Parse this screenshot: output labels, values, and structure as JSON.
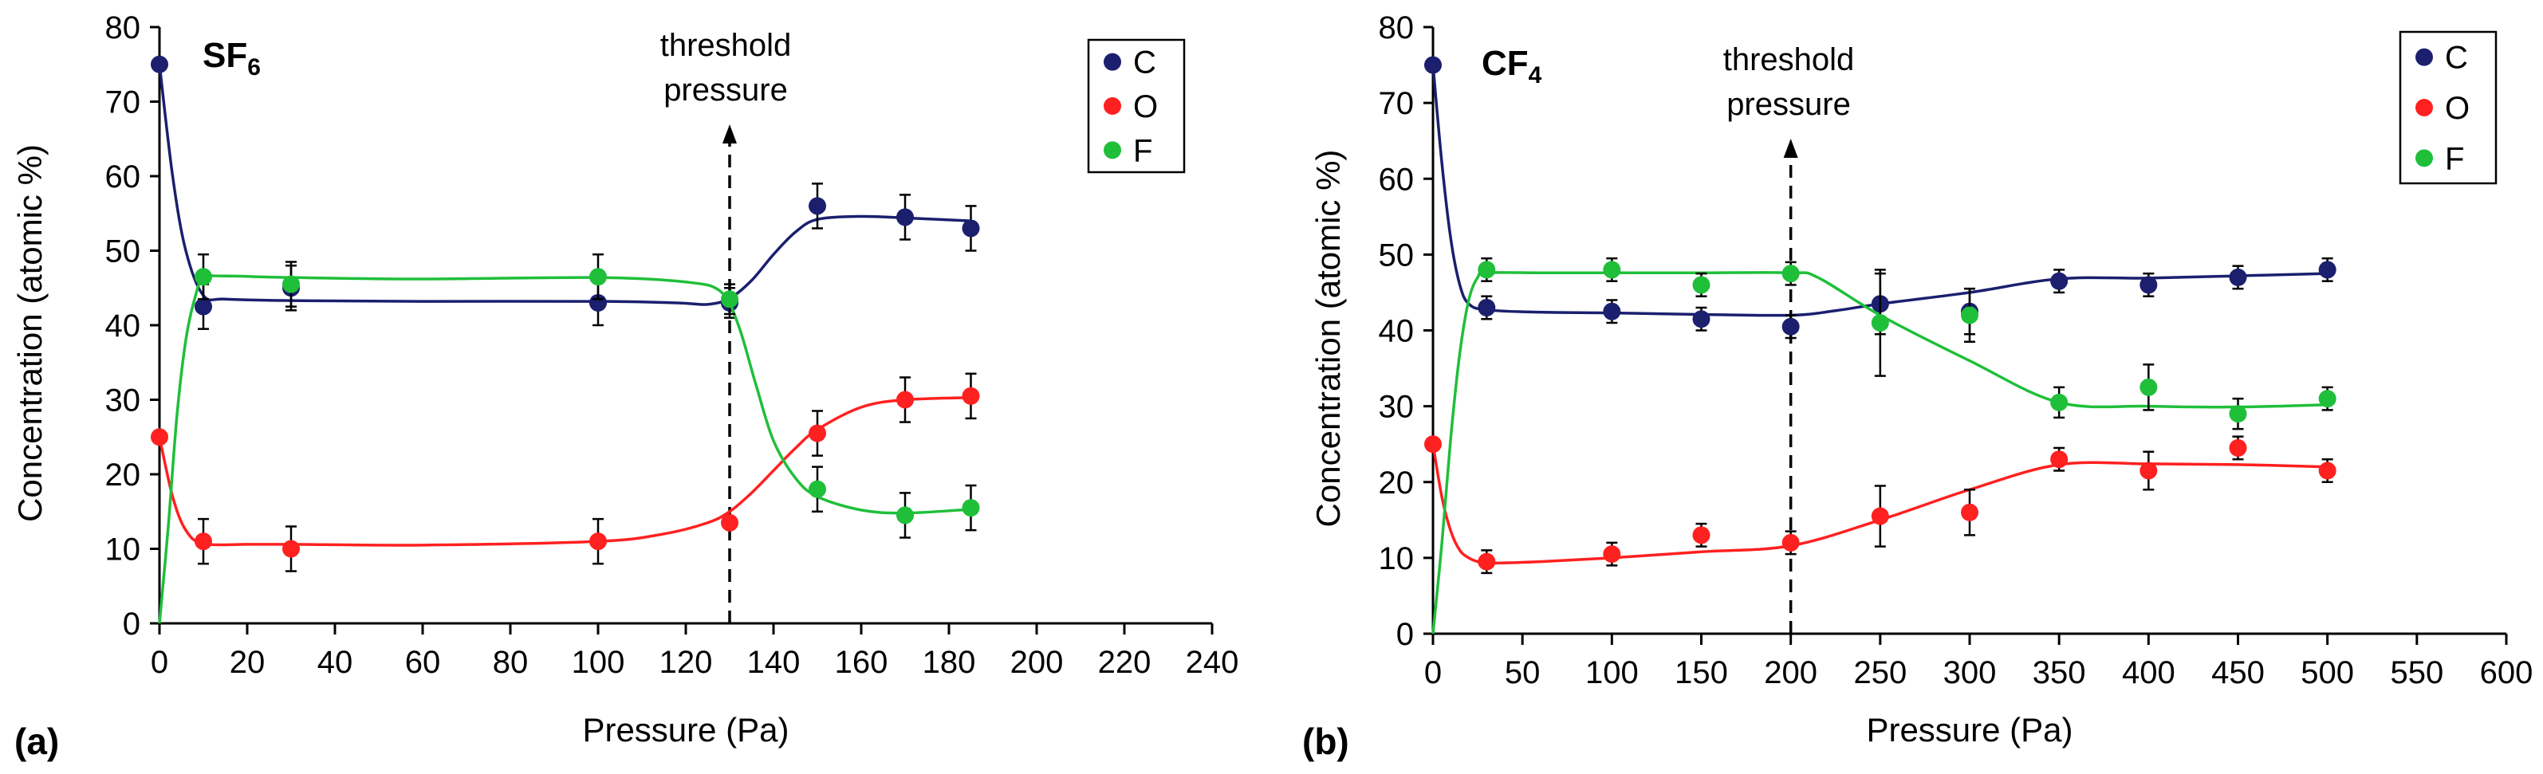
{
  "colors": {
    "C": "#1b1f6e",
    "O": "#ff2020",
    "F": "#1fbf3a",
    "axis": "#000000"
  },
  "chart_data": [
    {
      "type": "scatter",
      "panel_label": "(a)",
      "title_base": "SF",
      "title_sub": "6",
      "xlabel": "Pressure (Pa)",
      "ylabel": "Concentration (atomic %)",
      "xlim": [
        0,
        240
      ],
      "ylim": [
        0,
        80
      ],
      "xticks": [
        0,
        20,
        40,
        60,
        80,
        100,
        120,
        140,
        160,
        180,
        200,
        220,
        240
      ],
      "yticks": [
        0,
        10,
        20,
        30,
        40,
        50,
        60,
        70,
        80
      ],
      "grid": false,
      "legend_position": "top-right",
      "annotation": {
        "lines": [
          "threshold",
          "pressure"
        ],
        "x": 130
      },
      "series": [
        {
          "name": "C",
          "key": "C",
          "x": [
            0,
            10,
            30,
            100,
            130,
            150,
            170,
            185
          ],
          "values": [
            75,
            42.5,
            45,
            43,
            43,
            56,
            54.5,
            53
          ],
          "errors": [
            0,
            3,
            3,
            3,
            2,
            3,
            3,
            3
          ],
          "curve_x": [
            0,
            3,
            6,
            10,
            15,
            30,
            60,
            100,
            118,
            125,
            130,
            135,
            140,
            145,
            150,
            160,
            170,
            185
          ],
          "curve_y": [
            75,
            60,
            50,
            44,
            43.5,
            43.3,
            43.2,
            43.2,
            43,
            42.8,
            43.6,
            46,
            49.5,
            52.5,
            54.2,
            54.6,
            54.4,
            54
          ]
        },
        {
          "name": "O",
          "key": "O",
          "x": [
            0,
            10,
            30,
            100,
            130,
            150,
            170,
            185
          ],
          "values": [
            25,
            11,
            10,
            11,
            13.5,
            25.5,
            30,
            30.5
          ],
          "errors": [
            0,
            3,
            3,
            3,
            0,
            3,
            3,
            3
          ],
          "curve_x": [
            0,
            3,
            6,
            10,
            20,
            30,
            60,
            100,
            115,
            125,
            130,
            135,
            140,
            145,
            150,
            160,
            170,
            185
          ],
          "curve_y": [
            25,
            17,
            12.5,
            10.7,
            10.6,
            10.6,
            10.5,
            11,
            12,
            13.5,
            15,
            17.5,
            20.5,
            23.5,
            26,
            29,
            30,
            30.3
          ]
        },
        {
          "name": "F",
          "key": "F",
          "x": [
            10,
            30,
            100,
            130,
            150,
            170,
            185
          ],
          "values": [
            46.5,
            45.5,
            46.5,
            43.5,
            18,
            14.5,
            15.5
          ],
          "errors": [
            3,
            3,
            3,
            2,
            3,
            3,
            3
          ],
          "curve_x": [
            0,
            2,
            4,
            6,
            8,
            10,
            15,
            30,
            60,
            100,
            120,
            128,
            132,
            136,
            140,
            145,
            150,
            160,
            170,
            185
          ],
          "curve_y": [
            0,
            13,
            28,
            38,
            43.5,
            46.3,
            46.6,
            46.4,
            46.2,
            46.4,
            45.8,
            44.5,
            40,
            32,
            24.5,
            19.5,
            17,
            15.2,
            14.8,
            15.3
          ]
        }
      ]
    },
    {
      "type": "scatter",
      "panel_label": "(b)",
      "title_base": "CF",
      "title_sub": "4",
      "xlabel": "Pressure (Pa)",
      "ylabel": "Concentration (atomic %)",
      "xlim": [
        0,
        600
      ],
      "ylim": [
        0,
        80
      ],
      "xticks": [
        0,
        50,
        100,
        150,
        200,
        250,
        300,
        350,
        400,
        450,
        500,
        550,
        600
      ],
      "yticks": [
        0,
        10,
        20,
        30,
        40,
        50,
        60,
        70,
        80
      ],
      "grid": false,
      "legend_position": "top-right",
      "annotation": {
        "lines": [
          "threshold",
          "pressure"
        ],
        "x": 200
      },
      "series": [
        {
          "name": "C",
          "key": "C",
          "x": [
            0,
            30,
            100,
            150,
            200,
            250,
            300,
            350,
            400,
            450,
            500
          ],
          "values": [
            75,
            43,
            42.5,
            41.5,
            40.5,
            43.5,
            42.5,
            46.5,
            46,
            47,
            48
          ],
          "errors": [
            0,
            1.5,
            1.5,
            1.5,
            1.5,
            4,
            3,
            1.5,
            1.5,
            1.5,
            1.5
          ],
          "curve_x": [
            0,
            5,
            10,
            15,
            20,
            30,
            60,
            100,
            150,
            200,
            225,
            250,
            300,
            350,
            400,
            450,
            500
          ],
          "curve_y": [
            75,
            62,
            52,
            46,
            43.5,
            42.7,
            42.4,
            42.3,
            42.1,
            42,
            42.6,
            43.5,
            45,
            46.8,
            46.9,
            47.2,
            47.5
          ]
        },
        {
          "name": "O",
          "key": "O",
          "x": [
            0,
            30,
            100,
            150,
            200,
            250,
            300,
            350,
            400,
            450,
            500
          ],
          "values": [
            25,
            9.5,
            10.5,
            13,
            12,
            15.5,
            16,
            23,
            21.5,
            24.5,
            21.5
          ],
          "errors": [
            0,
            1.5,
            1.5,
            1.5,
            1.5,
            4,
            3,
            1.5,
            2.5,
            1.5,
            1.5
          ],
          "curve_x": [
            0,
            5,
            10,
            15,
            20,
            25,
            30,
            60,
            100,
            150,
            200,
            250,
            300,
            350,
            400,
            450,
            500
          ],
          "curve_y": [
            25,
            18,
            13.5,
            11,
            10,
            9.5,
            9.3,
            9.5,
            10,
            10.8,
            11.6,
            15,
            19,
            22.3,
            22.4,
            22.3,
            22
          ]
        },
        {
          "name": "F",
          "key": "F",
          "x": [
            30,
            100,
            150,
            200,
            250,
            300,
            350,
            400,
            450,
            500
          ],
          "values": [
            48,
            48,
            46,
            47.5,
            41,
            42,
            30.5,
            32.5,
            29,
            31
          ],
          "errors": [
            1.5,
            1.5,
            1.5,
            1.5,
            7,
            3.5,
            2,
            3,
            2,
            1.5
          ],
          "curve_x": [
            0,
            5,
            10,
            15,
            20,
            25,
            30,
            60,
            100,
            150,
            200,
            215,
            250,
            300,
            350,
            400,
            450,
            500
          ],
          "curve_y": [
            0,
            12,
            26,
            37,
            44,
            47,
            47.6,
            47.6,
            47.6,
            47.6,
            47.6,
            47,
            42,
            36,
            30.5,
            30,
            29.9,
            30.2
          ]
        }
      ]
    }
  ]
}
